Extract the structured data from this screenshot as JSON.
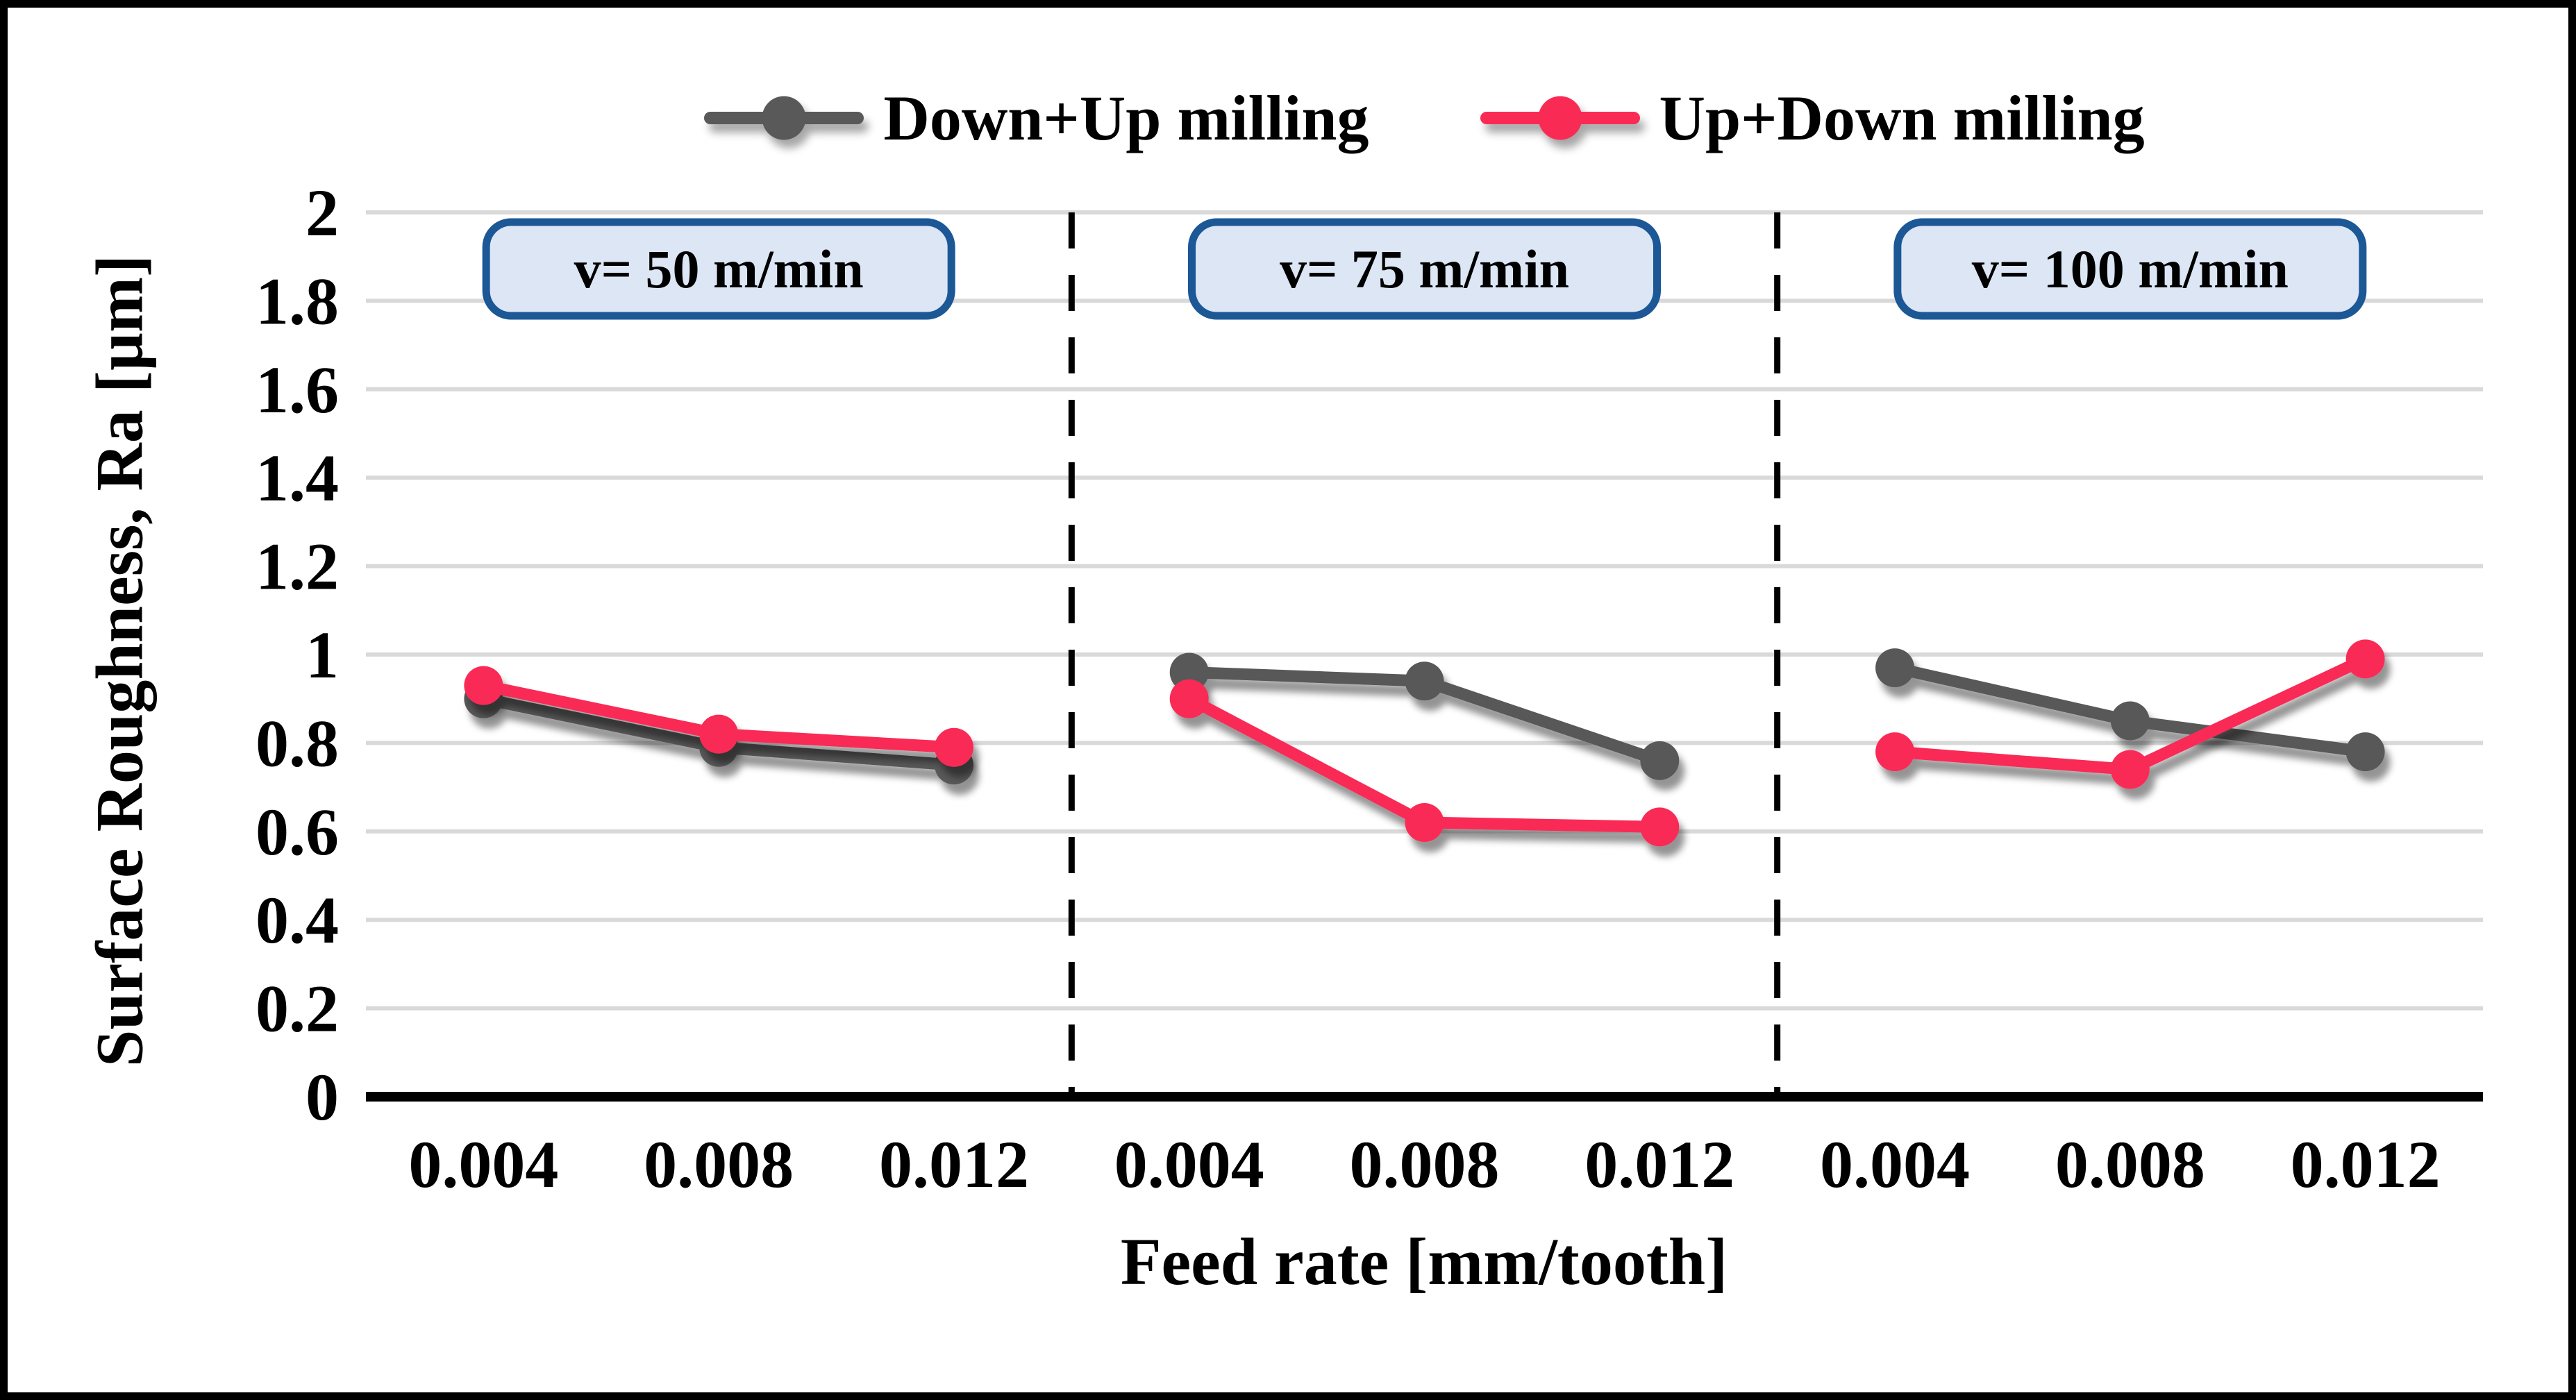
{
  "chart_data": {
    "type": "line",
    "title": "",
    "ylabel": "Surface Roughness, Ra [µm]",
    "xlabel": "Feed rate [mm/tooth]",
    "ylim": [
      0,
      2
    ],
    "ytick_step": 0.2,
    "ytick_labels": [
      "0",
      "0.2",
      "0.4",
      "0.6",
      "0.8",
      "1",
      "1.2",
      "1.4",
      "1.6",
      "1.8",
      "2"
    ],
    "categories": [
      "0.004",
      "0.008",
      "0.012",
      "0.004",
      "0.008",
      "0.012",
      "0.004",
      "0.008",
      "0.012"
    ],
    "panels": [
      {
        "label": "v= 50 m/min"
      },
      {
        "label": "v= 75 m/min"
      },
      {
        "label": "v= 100 m/min"
      }
    ],
    "series": [
      {
        "name": "Down+Up milling",
        "color": "#595959",
        "marker": "circle",
        "values": [
          0.9,
          0.79,
          0.75,
          0.96,
          0.94,
          0.76,
          0.97,
          0.85,
          0.78
        ]
      },
      {
        "name": "Up+Down milling",
        "color": "#F92B55",
        "marker": "circle",
        "values": [
          0.93,
          0.82,
          0.79,
          0.9,
          0.62,
          0.61,
          0.78,
          0.74,
          0.99
        ]
      }
    ],
    "grid": "horizontal",
    "legend_position": "top",
    "colors": {
      "gridline": "#D9D9D9",
      "axis": "#000000",
      "separator": "#000000",
      "panel_box_fill": "#DCE6F4",
      "panel_box_border": "#1C5796",
      "text": "#000000"
    }
  }
}
